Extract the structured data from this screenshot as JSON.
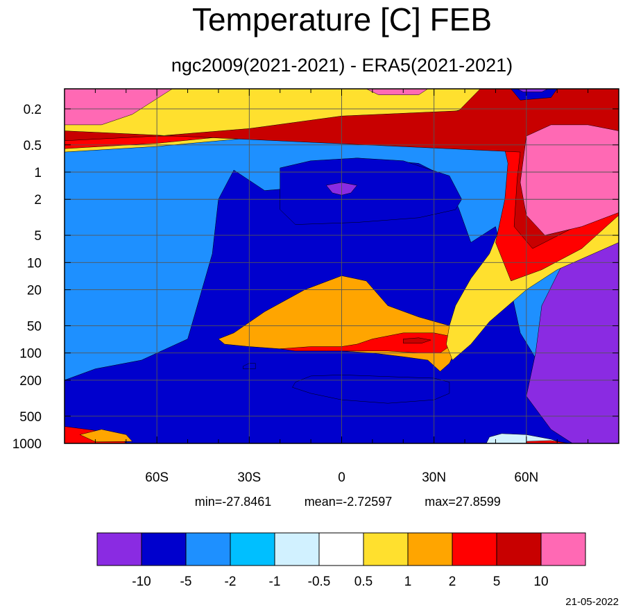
{
  "chart_data": {
    "type": "filled-contour",
    "title": "Temperature [C] FEB",
    "subtitle": "ngc2009(2021-2021) - ERA5(2021-2021)",
    "x_axis": {
      "tick_labels": [
        "60S",
        "30S",
        "0",
        "30N",
        "60N"
      ],
      "tick_values": [
        -60,
        -30,
        0,
        30,
        60
      ],
      "range": [
        -90,
        90
      ]
    },
    "y_axis": {
      "scale": "log-pressure",
      "tick_labels": [
        "0.2",
        "0.5",
        "1",
        "2",
        "5",
        "10",
        "20",
        "50",
        "100",
        "200",
        "500",
        "1000"
      ],
      "tick_values": [
        0.2,
        0.5,
        1,
        2,
        5,
        10,
        20,
        50,
        100,
        200,
        500,
        1000
      ],
      "range": [
        1000,
        0.12
      ],
      "reversed": true
    },
    "grid": true,
    "stats": {
      "min": "min=-27.8461",
      "mean": "mean=-2.72597",
      "max": "max=27.8599"
    },
    "colorbar": {
      "placement": "bottom",
      "levels": [
        "-10",
        "-5",
        "-2",
        "-1",
        "-0.5",
        "0.5",
        "1",
        "2",
        "5",
        "10"
      ],
      "colors": [
        "#8A2BE2",
        "#0000CD",
        "#1E90FF",
        "#00BFFF",
        "#D1F1FF",
        "#FFFFFF",
        "#FFE02E",
        "#FFA500",
        "#FF0000",
        "#C80000",
        "#FF69B4"
      ]
    },
    "regions": [
      {
        "level": 2,
        "points": [
          [
            -90,
            1000
          ],
          [
            90,
            1000
          ],
          [
            90,
            0.12
          ],
          [
            -90,
            0.12
          ]
        ]
      },
      {
        "level": 1,
        "points": [
          [
            -90,
            200
          ],
          [
            -80,
            150
          ],
          [
            -65,
            120
          ],
          [
            -50,
            70
          ],
          [
            -42,
            8
          ],
          [
            -40,
            2
          ],
          [
            -35,
            0.95
          ],
          [
            -25,
            1.6
          ],
          [
            -20,
            1.55
          ],
          [
            -10,
            0.8
          ],
          [
            5,
            0.7
          ],
          [
            25,
            0.8
          ],
          [
            33,
            1.1
          ],
          [
            38,
            2.5
          ],
          [
            42,
            6
          ],
          [
            50,
            4
          ],
          [
            55,
            20
          ],
          [
            58,
            60
          ],
          [
            62,
            100
          ],
          [
            70,
            300
          ],
          [
            90,
            1000
          ],
          [
            -90,
            1000
          ]
        ]
      },
      {
        "level": 1,
        "points": [
          [
            -20,
            2.6
          ],
          [
            -20,
            0.9
          ],
          [
            -10,
            0.75
          ],
          [
            5,
            0.7
          ],
          [
            20,
            0.75
          ],
          [
            35,
            1.1
          ],
          [
            39,
            2
          ],
          [
            37,
            2.6
          ],
          [
            25,
            3.2
          ],
          [
            5,
            3.6
          ],
          [
            -15,
            3.8
          ]
        ]
      },
      {
        "level": 1,
        "points": [
          [
            -32,
            140
          ],
          [
            -30,
            130
          ],
          [
            -28,
            130
          ],
          [
            -28,
            150
          ],
          [
            -32,
            150
          ]
        ]
      },
      {
        "level": 1,
        "points": [
          [
            -15,
            210
          ],
          [
            -10,
            180
          ],
          [
            0,
            175
          ],
          [
            10,
            180
          ],
          [
            20,
            185
          ],
          [
            30,
            190
          ],
          [
            35,
            210
          ],
          [
            35,
            280
          ],
          [
            30,
            330
          ],
          [
            15,
            360
          ],
          [
            0,
            330
          ],
          [
            -10,
            280
          ],
          [
            -16,
            240
          ]
        ]
      },
      {
        "level": 0,
        "points": [
          [
            -5,
            1.4
          ],
          [
            0,
            1.3
          ],
          [
            5,
            1.4
          ],
          [
            3,
            1.7
          ],
          [
            0,
            1.8
          ],
          [
            -3,
            1.7
          ]
        ]
      },
      {
        "level": 0,
        "points": [
          [
            60,
            300
          ],
          [
            63,
            100
          ],
          [
            65,
            30
          ],
          [
            72,
            10
          ],
          [
            80,
            6
          ],
          [
            90,
            5
          ],
          [
            90,
            1000
          ],
          [
            75,
            1000
          ],
          [
            68,
            700
          ]
        ]
      },
      {
        "level": 4,
        "points": [
          [
            -90,
            800
          ],
          [
            -85,
            700
          ],
          [
            -78,
            800
          ],
          [
            -70,
            1000
          ],
          [
            -90,
            1000
          ]
        ]
      },
      {
        "level": 4,
        "points": [
          [
            47,
            1000
          ],
          [
            48,
            850
          ],
          [
            52,
            780
          ],
          [
            60,
            800
          ],
          [
            68,
            900
          ],
          [
            72,
            1000
          ]
        ]
      },
      {
        "level": 7,
        "points": [
          [
            -40,
            70
          ],
          [
            -35,
            60
          ],
          [
            -25,
            35
          ],
          [
            -12,
            20
          ],
          [
            0,
            14
          ],
          [
            8,
            16
          ],
          [
            15,
            30
          ],
          [
            25,
            40
          ],
          [
            35,
            50
          ],
          [
            38,
            80
          ],
          [
            35,
            130
          ],
          [
            32,
            160
          ],
          [
            28,
            120
          ],
          [
            20,
            110
          ],
          [
            10,
            100
          ],
          [
            0,
            95
          ],
          [
            -10,
            90
          ],
          [
            -20,
            90
          ],
          [
            -30,
            85
          ],
          [
            -38,
            80
          ]
        ]
      },
      {
        "level": 8,
        "points": [
          [
            -20,
            90
          ],
          [
            -10,
            85
          ],
          [
            0,
            85
          ],
          [
            5,
            80
          ],
          [
            10,
            70
          ],
          [
            20,
            60
          ],
          [
            30,
            60
          ],
          [
            35,
            65
          ],
          [
            36,
            80
          ],
          [
            32,
            100
          ],
          [
            25,
            100
          ],
          [
            15,
            95
          ],
          [
            5,
            95
          ],
          [
            -5,
            95
          ],
          [
            -15,
            95
          ]
        ]
      },
      {
        "level": 9,
        "points": [
          [
            20,
            70
          ],
          [
            25,
            68
          ],
          [
            29,
            72
          ],
          [
            26,
            78
          ],
          [
            20,
            78
          ]
        ]
      },
      {
        "level": 8,
        "points": [
          [
            -90,
            650
          ],
          [
            -80,
            720
          ],
          [
            -72,
            850
          ],
          [
            -70,
            1000
          ],
          [
            -90,
            1000
          ]
        ]
      },
      {
        "level": 7,
        "points": [
          [
            -85,
            800
          ],
          [
            -78,
            700
          ],
          [
            -70,
            800
          ],
          [
            -68,
            950
          ],
          [
            -80,
            960
          ]
        ]
      },
      {
        "level": 8,
        "points": [
          [
            60,
            950
          ],
          [
            68,
            930
          ],
          [
            74,
            1000
          ],
          [
            60,
            1000
          ]
        ]
      },
      {
        "level": 6,
        "points": [
          [
            -90,
            0.6
          ],
          [
            -60,
            0.52
          ],
          [
            -30,
            0.42
          ],
          [
            0,
            0.3
          ],
          [
            30,
            0.28
          ],
          [
            42,
            0.25
          ],
          [
            48,
            0.31
          ],
          [
            55,
            0.47
          ],
          [
            57,
            1
          ],
          [
            53,
            3
          ],
          [
            48,
            8
          ],
          [
            42,
            15
          ],
          [
            37,
            30
          ],
          [
            35,
            50
          ],
          [
            34,
            80
          ],
          [
            36,
            120
          ],
          [
            42,
            80
          ],
          [
            48,
            45
          ],
          [
            60,
            20
          ],
          [
            70,
            12
          ],
          [
            90,
            6
          ],
          [
            90,
            0.12
          ],
          [
            -90,
            0.12
          ]
        ]
      },
      {
        "level": 8,
        "points": [
          [
            -90,
            0.55
          ],
          [
            -60,
            0.48
          ],
          [
            -30,
            0.38
          ],
          [
            0,
            0.27
          ],
          [
            30,
            0.24
          ],
          [
            40,
            0.2
          ],
          [
            45,
            0.12
          ],
          [
            90,
            0.12
          ],
          [
            90,
            3
          ],
          [
            78,
            7
          ],
          [
            65,
            12
          ],
          [
            55,
            16
          ],
          [
            50,
            6
          ],
          [
            53,
            2
          ],
          [
            54,
            0.8
          ],
          [
            52,
            0.4
          ],
          [
            -90,
            0.4
          ]
        ]
      },
      {
        "level": 9,
        "points": [
          [
            -90,
            0.45
          ],
          [
            -60,
            0.4
          ],
          [
            -30,
            0.33
          ],
          [
            0,
            0.24
          ],
          [
            38,
            0.21
          ],
          [
            45,
            0.12
          ],
          [
            90,
            0.12
          ],
          [
            90,
            2
          ],
          [
            76,
            4
          ],
          [
            62,
            7
          ],
          [
            56,
            4
          ],
          [
            57,
            1.2
          ],
          [
            58,
            0.6
          ],
          [
            -90,
            0.35
          ]
        ]
      },
      {
        "level": 10,
        "points": [
          [
            -90,
            0.3
          ],
          [
            -78,
            0.3
          ],
          [
            -68,
            0.23
          ],
          [
            -55,
            0.12
          ],
          [
            -90,
            0.12
          ]
        ]
      },
      {
        "level": 10,
        "points": [
          [
            60,
            0.4
          ],
          [
            68,
            0.3
          ],
          [
            80,
            0.3
          ],
          [
            90,
            0.35
          ],
          [
            90,
            2.8
          ],
          [
            78,
            4
          ],
          [
            66,
            5
          ],
          [
            60,
            3
          ],
          [
            58,
            1.3
          ]
        ]
      },
      {
        "level": 10,
        "points": [
          [
            8,
            0.12
          ],
          [
            12,
            0.14
          ],
          [
            25,
            0.14
          ],
          [
            28,
            0.12
          ]
        ]
      },
      {
        "level": 1,
        "points": [
          [
            55,
            0.12
          ],
          [
            70,
            0.12
          ],
          [
            68,
            0.15
          ],
          [
            58,
            0.16
          ]
        ]
      },
      {
        "level": 0,
        "points": [
          [
            57,
            0.12
          ],
          [
            67,
            0.12
          ],
          [
            65,
            0.13
          ],
          [
            59,
            0.13
          ]
        ]
      }
    ]
  },
  "footer": {
    "date": "21-05-2022"
  }
}
